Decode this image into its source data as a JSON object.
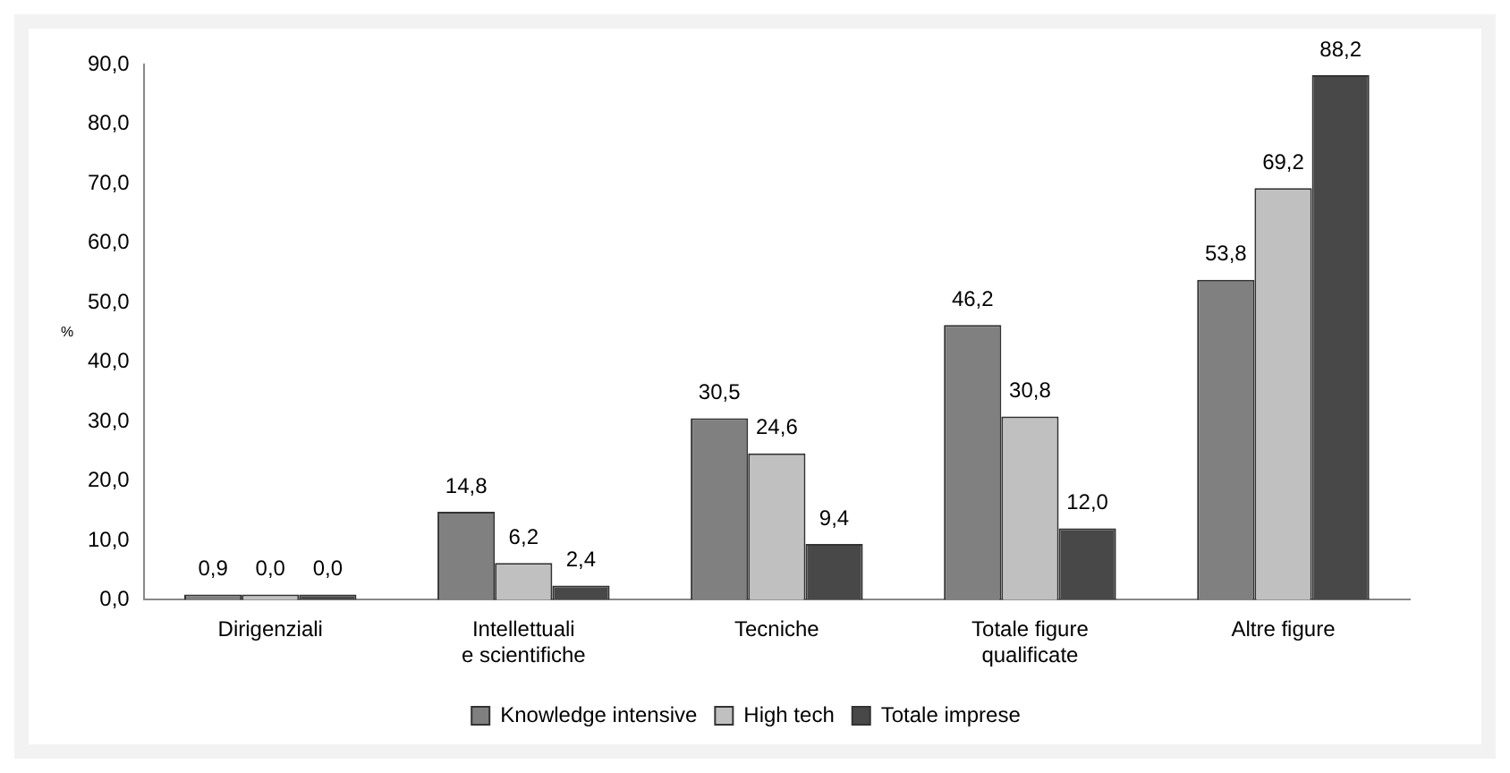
{
  "chart_data": {
    "type": "bar",
    "ylabel": "%",
    "categories": [
      "Dirigenziali",
      "Intellettuali e scientifiche",
      "Tecniche",
      "Totale figure qualificate",
      "Altre figure"
    ],
    "series": [
      {
        "name": "Knowledge intensive",
        "color": "#808080",
        "values": [
          0.9,
          14.8,
          30.5,
          46.2,
          53.8
        ],
        "value_labels": [
          "0,9",
          "14,8",
          "30,5",
          "46,2",
          "53,8"
        ]
      },
      {
        "name": "High tech",
        "color": "#c0c0c0",
        "values": [
          0.0,
          6.2,
          24.6,
          30.8,
          69.2
        ],
        "value_labels": [
          "0,0",
          "6,2",
          "24,6",
          "30,8",
          "69,2"
        ]
      },
      {
        "name": "Totale imprese",
        "color": "#484848",
        "values": [
          0.0,
          2.4,
          9.4,
          12.0,
          88.2
        ],
        "value_labels": [
          "0,0",
          "2,4",
          "9,4",
          "12,0",
          "88,2"
        ]
      }
    ],
    "ylim": [
      0,
      90
    ],
    "yticks": [
      {
        "value": 0,
        "label": "0,0"
      },
      {
        "value": 10,
        "label": "10,0"
      },
      {
        "value": 20,
        "label": "20,0"
      },
      {
        "value": 30,
        "label": "30,0"
      },
      {
        "value": 40,
        "label": "40,0"
      },
      {
        "value": 50,
        "label": "50,0"
      },
      {
        "value": 60,
        "label": "60,0"
      },
      {
        "value": 70,
        "label": "70,0"
      },
      {
        "value": 80,
        "label": "80,0"
      },
      {
        "value": 90,
        "label": "90,0"
      }
    ],
    "grid": false,
    "legend": "bottom"
  }
}
